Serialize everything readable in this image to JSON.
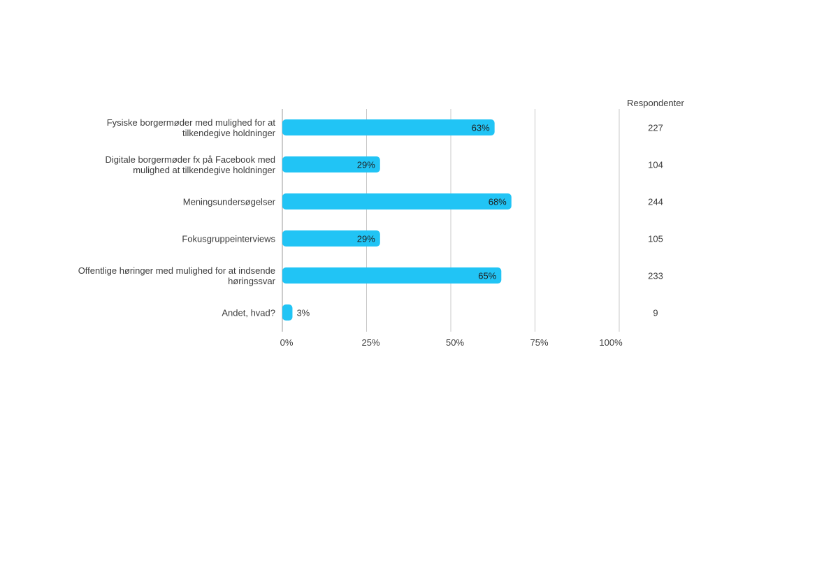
{
  "chart_data": {
    "type": "bar",
    "orientation": "horizontal",
    "title": "",
    "xlabel": "",
    "ylabel": "",
    "categories": [
      [
        "Fysiske borgermøder med mulighed for at",
        "tilkendegive holdninger"
      ],
      [
        "Digitale borgermøder fx på Facebook med",
        "mulighed at tilkendegive holdninger"
      ],
      [
        "Meningsundersøgelser"
      ],
      [
        "Fokusgruppeinterviews"
      ],
      [
        "Offentlige høringer med mulighed for at indsende",
        "høringssvar"
      ],
      [
        "Andet, hvad?"
      ]
    ],
    "values": [
      63,
      29,
      68,
      29,
      65,
      3
    ],
    "value_labels": [
      "63%",
      "29%",
      "68%",
      "29%",
      "65%",
      "3%"
    ],
    "respondents_header": "Respondenter",
    "respondents": [
      "227",
      "104",
      "244",
      "105",
      "233",
      "9"
    ],
    "xlim": [
      0,
      100
    ],
    "x_ticks": [
      0,
      25,
      50,
      75,
      100
    ],
    "x_tick_labels": [
      "0%",
      "25%",
      "50%",
      "75%",
      "100%"
    ],
    "grid": true,
    "colors": {
      "bar": "#21c4f5",
      "grid": "#c8c8c8",
      "text": "#3c3c3c",
      "value_label": "#1e1e1e"
    }
  }
}
